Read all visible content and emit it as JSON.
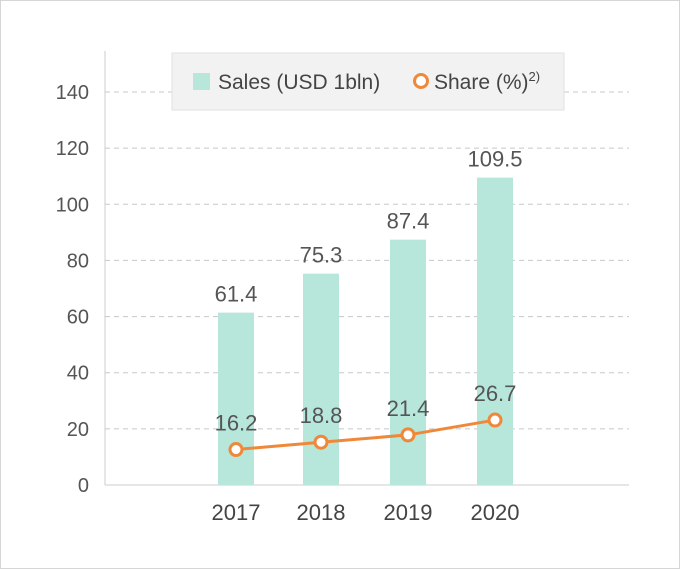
{
  "chart_data": {
    "type": "bar",
    "categories": [
      "2017",
      "2018",
      "2019",
      "2020"
    ],
    "series": [
      {
        "name": "Sales (USD 1bln)",
        "type": "bar",
        "values": [
          61.4,
          75.3,
          87.4,
          109.5
        ],
        "color": "#b7e6da"
      },
      {
        "name": "Share (%)",
        "superscript": "2)",
        "type": "line",
        "values": [
          16.2,
          18.8,
          21.4,
          26.7
        ],
        "color": "#f0883a"
      }
    ],
    "y_ticks": [
      "0",
      "20",
      "40",
      "60",
      "80",
      "100",
      "120",
      "140"
    ],
    "ylim": [
      0,
      150
    ],
    "grid": true,
    "legend_position": "top",
    "axis_color": "#cccccc",
    "grid_color": "#c8c8c8"
  }
}
